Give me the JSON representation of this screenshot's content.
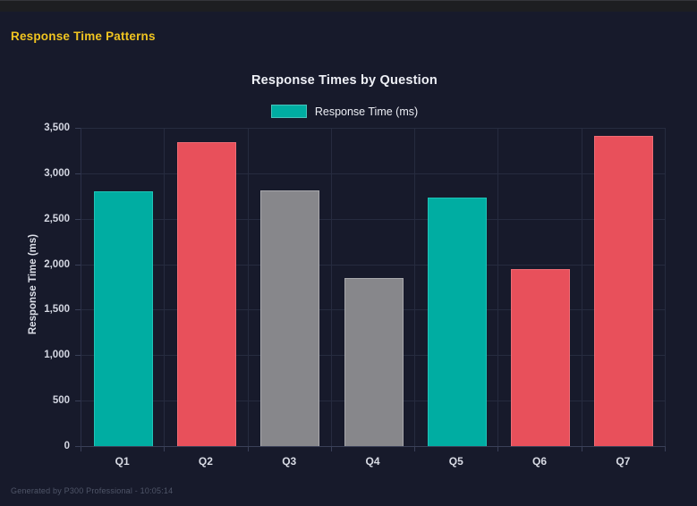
{
  "header": {
    "title": "Response Time Patterns",
    "accent_color": "#f0c420"
  },
  "chart_data": {
    "type": "bar",
    "title": "Response Times by Question",
    "legend": [
      {
        "label": "Response Time (ms)",
        "color": "#00ada2"
      }
    ],
    "legend_position": "top",
    "categories": [
      "Q1",
      "Q2",
      "Q3",
      "Q4",
      "Q5",
      "Q6",
      "Q7"
    ],
    "values": [
      2800,
      3340,
      2810,
      1850,
      2730,
      1950,
      3410
    ],
    "bar_colors": [
      "#00ada2",
      "#e8505b",
      "#87878b",
      "#87878b",
      "#00ada2",
      "#e8505b",
      "#e8505b"
    ],
    "bar_border_colors": [
      "#1fc4b8",
      "#ef6b74",
      "#a9a9ad",
      "#a9a9ad",
      "#1fc4b8",
      "#ef6b74",
      "#ef6b74"
    ],
    "xlabel": "",
    "ylabel": "Response Time (ms)",
    "ylim": [
      0,
      3500
    ],
    "ytick_step": 500,
    "yticks": [
      "0",
      "500",
      "1,000",
      "1,500",
      "2,000",
      "2,500",
      "3,000",
      "3,500"
    ],
    "grid": true,
    "background_color": "#171a2b",
    "gridline_color": "#262b3f"
  },
  "footer": {
    "text": "Generated by P300 Professional - 10:05:14"
  }
}
